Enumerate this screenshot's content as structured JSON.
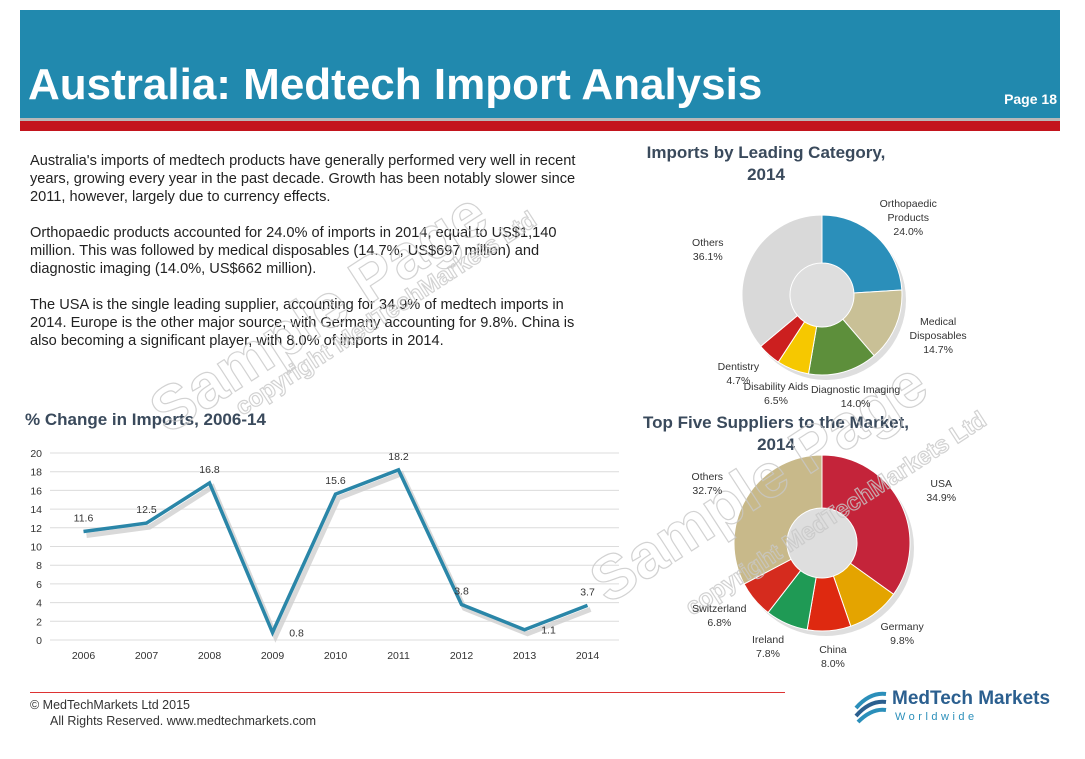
{
  "header": {
    "title": "Australia: Medtech Import Analysis",
    "page": "Page 18"
  },
  "body": [
    "Australia's imports of medtech products have generally performed very well in recent years, growing every year in the past decade. Growth has been notably slower since 2011, however, largely due to currency effects.",
    "Orthopaedic products accounted for 24.0% of imports in 2014, equal to US$1,140 million. This was followed by medical disposables (14.7%, US$697 million) and diagnostic imaging (14.0%, US$662 million).",
    "The USA is the single leading supplier, accounting for 34.9% of medtech imports in 2014. Europe is the other major source, with Germany accounting for 9.8%. China is also becoming a significant player, with 8.0% of imports in 2014."
  ],
  "chart_data": [
    {
      "type": "line",
      "title": "% Change in Imports, 2006-14",
      "categories": [
        "2006",
        "2007",
        "2008",
        "2009",
        "2010",
        "2011",
        "2012",
        "2013",
        "2014"
      ],
      "values": [
        11.6,
        12.5,
        16.8,
        0.8,
        15.6,
        18.2,
        3.8,
        1.1,
        3.7
      ],
      "color": "#2a86a8",
      "ylim": [
        0,
        20
      ],
      "yticks": [
        0,
        2,
        4,
        6,
        8,
        10,
        12,
        14,
        16,
        18,
        20
      ],
      "grid": true
    },
    {
      "type": "donut",
      "title": "Imports by Leading Category, 2014",
      "categories": [
        "Orthopaedic Products",
        "Medical Disposables",
        "Diagnostic Imaging",
        "Disability Aids",
        "Dentistry",
        "Others"
      ],
      "values": [
        24.0,
        14.7,
        14.0,
        6.5,
        4.7,
        36.1
      ],
      "value_labels": [
        "24.0%",
        "14.7%",
        "14.0%",
        "6.5%",
        "4.7%",
        "36.1%"
      ],
      "colors": [
        "#2b8fba",
        "#c9c096",
        "#5d8f3b",
        "#f6c800",
        "#cc1f1f",
        "#d9d9d9"
      ]
    },
    {
      "type": "donut",
      "title": "Top Five Suppliers to the Market, 2014",
      "categories": [
        "USA",
        "Germany",
        "China",
        "Ireland",
        "Switzerland",
        "Others"
      ],
      "values": [
        34.9,
        9.8,
        8.0,
        7.8,
        6.8,
        32.7
      ],
      "value_labels": [
        "34.9%",
        "9.8%",
        "8.0%",
        "7.8%",
        "6.8%",
        "32.7%"
      ],
      "colors": [
        "#c4243a",
        "#e4a400",
        "#de2910",
        "#1f9a55",
        "#d52b1e",
        "#c8b98a"
      ]
    }
  ],
  "watermark": [
    "Sample Page",
    "copyright MedTechMarkets Ltd"
  ],
  "footer": {
    "copyright": "©  MedTechMarkets Ltd 2015",
    "rights": "All Rights Reserved. www.medtechmarkets.com",
    "logo": "MedTech Markets",
    "logo_sub": "Worldwide"
  }
}
